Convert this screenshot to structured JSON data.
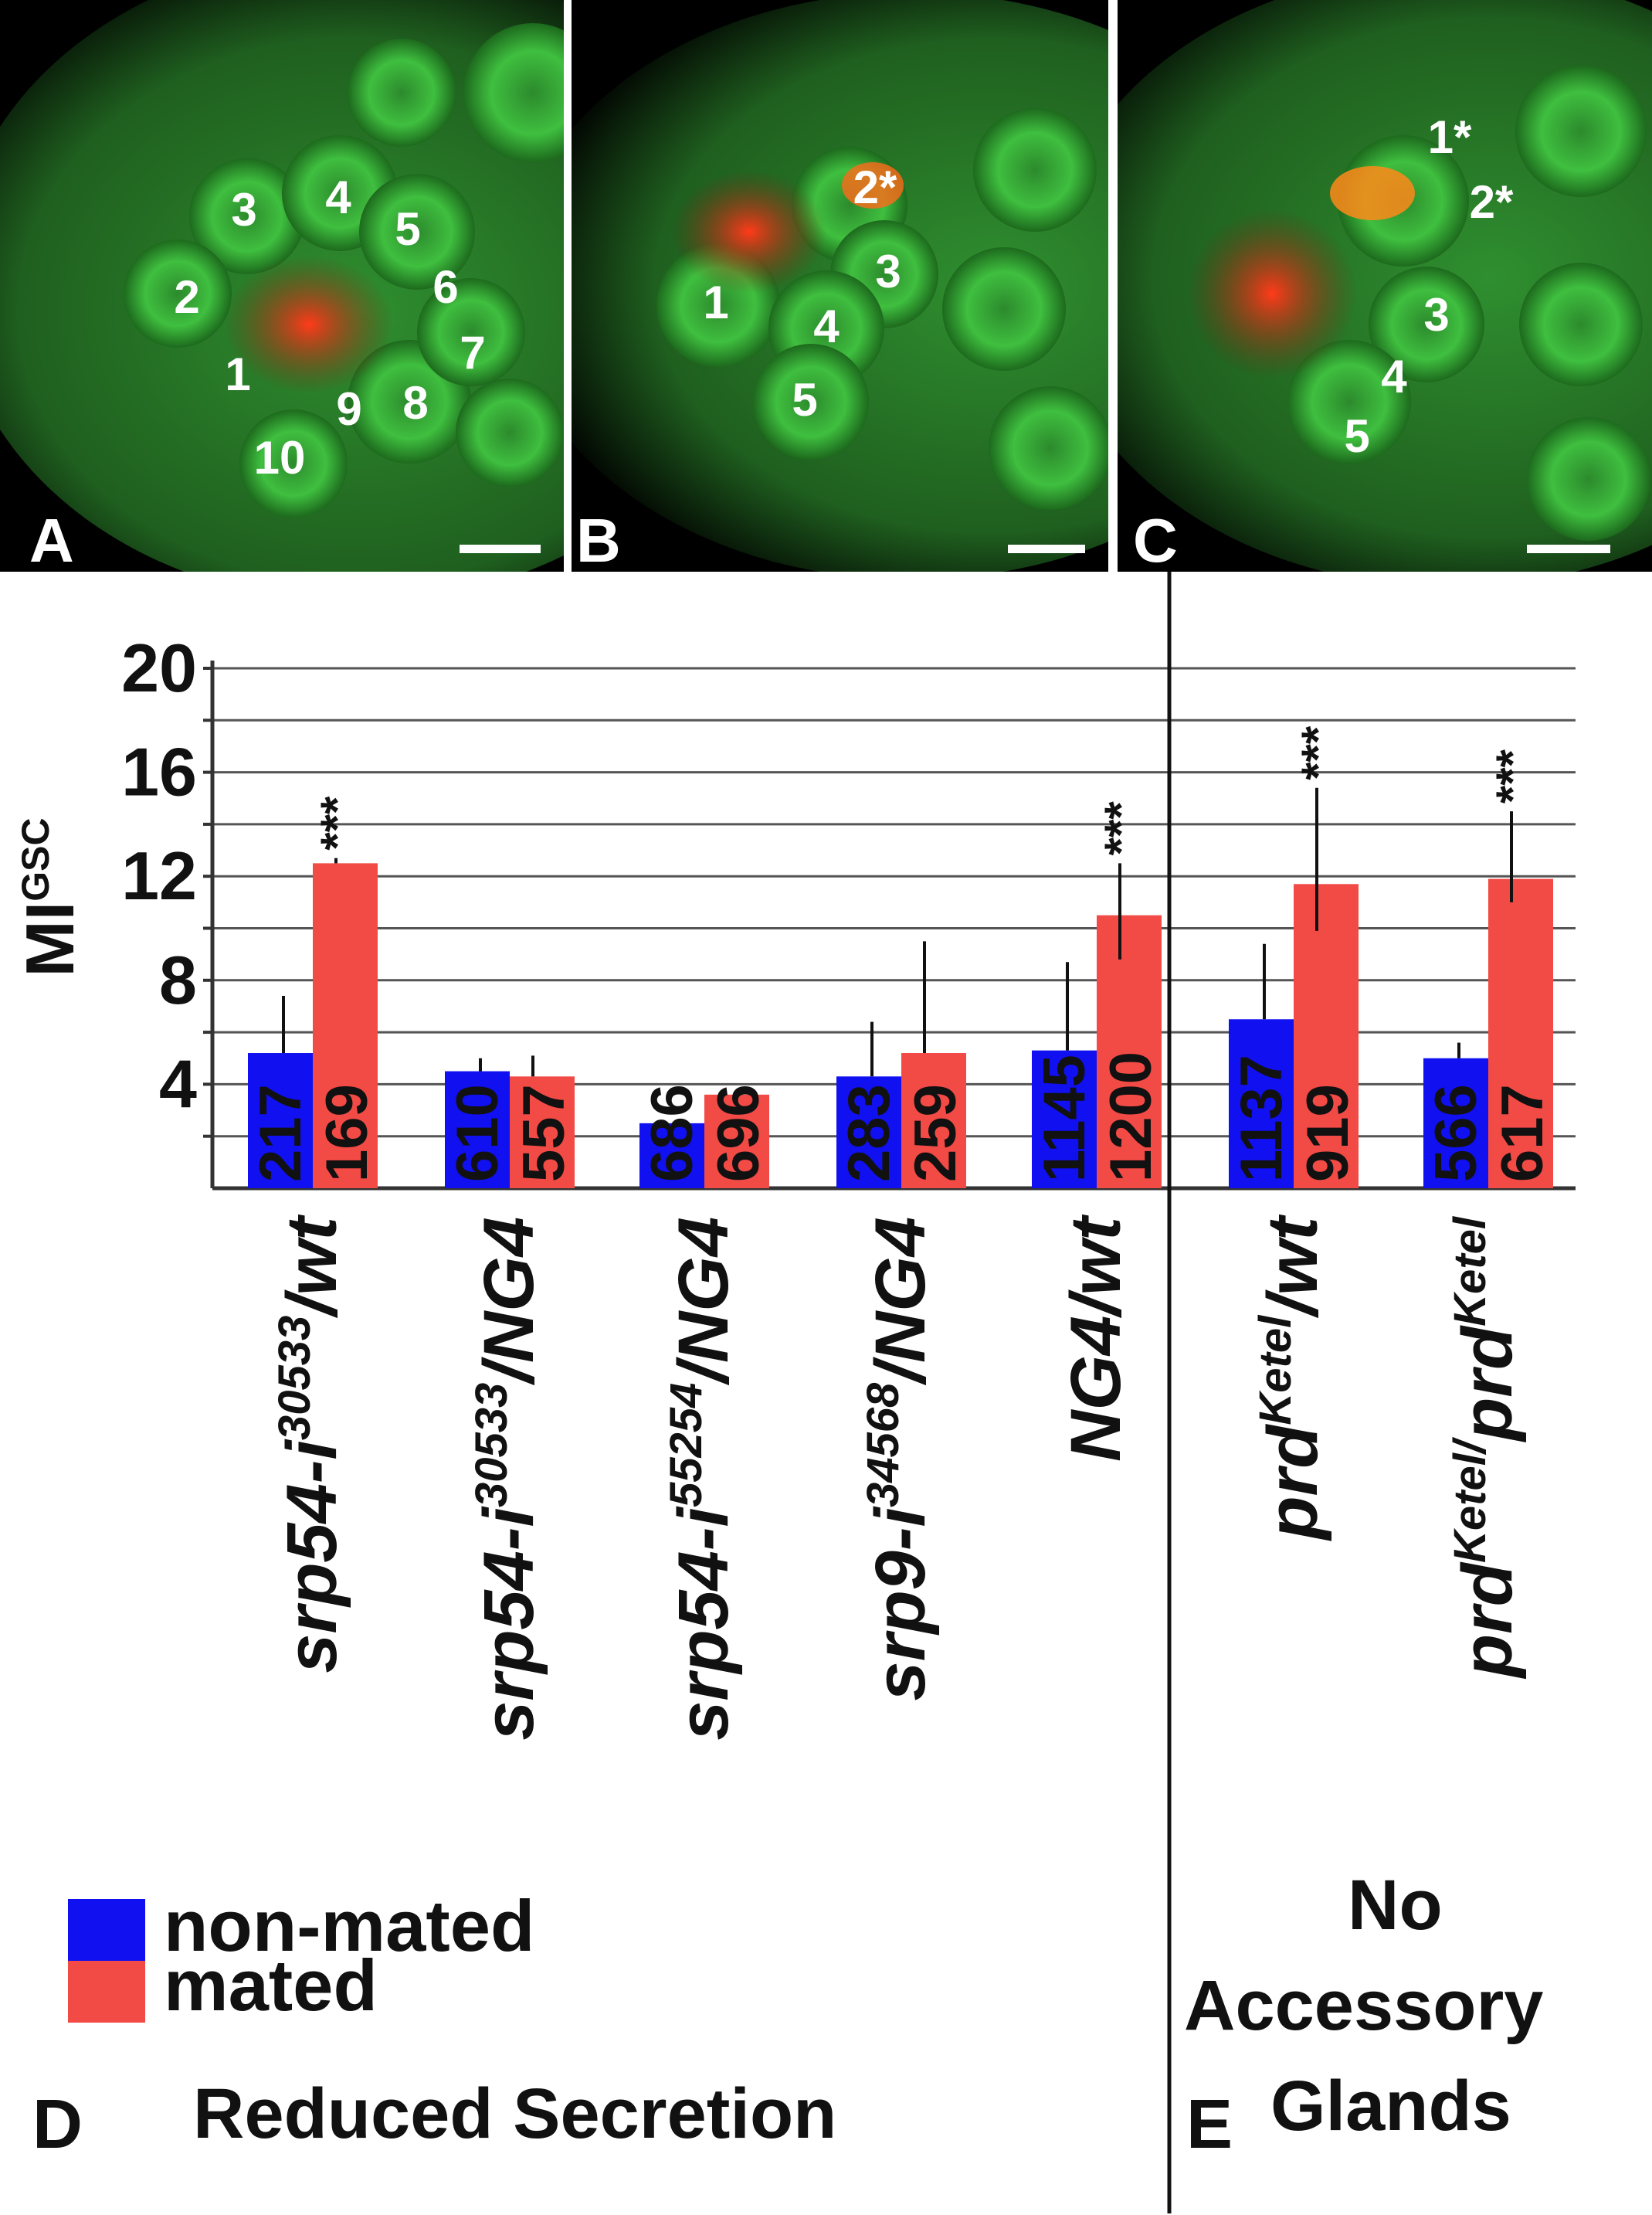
{
  "panels": [
    {
      "letter": "A",
      "cells": [
        "1",
        "2",
        "3",
        "4",
        "5",
        "6",
        "7",
        "8",
        "9",
        "10"
      ]
    },
    {
      "letter": "B",
      "cells": [
        "1",
        "2*",
        "3",
        "4",
        "5"
      ]
    },
    {
      "letter": "C",
      "cells": [
        "1*",
        "2*",
        "3",
        "4",
        "5"
      ]
    }
  ],
  "colors": {
    "non_mated": "#1010f0",
    "mated": "#f24a45",
    "micro_bg": "#000000",
    "micro_cell": "#3cbf3c",
    "micro_signal": "#e8391a"
  },
  "chart_data": {
    "type": "bar",
    "ylabel": "MI",
    "ylabel_sup": "GSC",
    "ylim": [
      0,
      20
    ],
    "yticks": [
      "4",
      "8",
      "12",
      "16",
      "20"
    ],
    "categories": [
      {
        "base": "srp54-i",
        "sup": "30533",
        "rest": "/wt"
      },
      {
        "base": "srp54-i",
        "sup": "30533",
        "rest": "/NG4"
      },
      {
        "base": "srp54-i",
        "sup": "55254",
        "rest": "/NG4"
      },
      {
        "base": "srp9-i",
        "sup": "34568",
        "rest": "/NG4"
      },
      {
        "base": "NG4/wt",
        "sup": "",
        "rest": ""
      },
      {
        "base": "prd",
        "sup": "Ketel",
        "rest": "/wt"
      },
      {
        "base": "prd",
        "sup": "Ketel/",
        "rest": "prd",
        "sup2": "Ketel"
      }
    ],
    "series": [
      {
        "name": "non-mated",
        "values": [
          5.2,
          4.5,
          2.5,
          4.3,
          5.3,
          6.5,
          5.0
        ],
        "err_high": [
          7.4,
          5.0,
          2.5,
          6.4,
          8.7,
          9.4,
          5.6
        ],
        "n_labels": [
          "217",
          "610",
          "686",
          "283",
          "1145",
          "1137",
          "566"
        ]
      },
      {
        "name": "mated",
        "values": [
          12.5,
          4.3,
          3.6,
          5.2,
          10.5,
          11.7,
          11.9
        ],
        "err_high": [
          12.7,
          5.1,
          3.6,
          9.5,
          12.5,
          15.4,
          14.5
        ],
        "err_low": [
          12.5,
          4.3,
          3.6,
          5.2,
          8.8,
          9.9,
          11.0
        ],
        "n_labels": [
          "169",
          "557",
          "696",
          "259",
          "1200",
          "919",
          "617"
        ],
        "significance": [
          "***",
          "",
          "",
          "",
          "***",
          "***",
          "***"
        ]
      }
    ],
    "legend_position": "bottom-left",
    "grid": true
  },
  "footer": {
    "panel_d": "D",
    "panel_d_caption": "Reduced Secretion",
    "panel_e": "E",
    "panel_e_caption": [
      "No",
      "Accessory",
      "Glands"
    ]
  }
}
